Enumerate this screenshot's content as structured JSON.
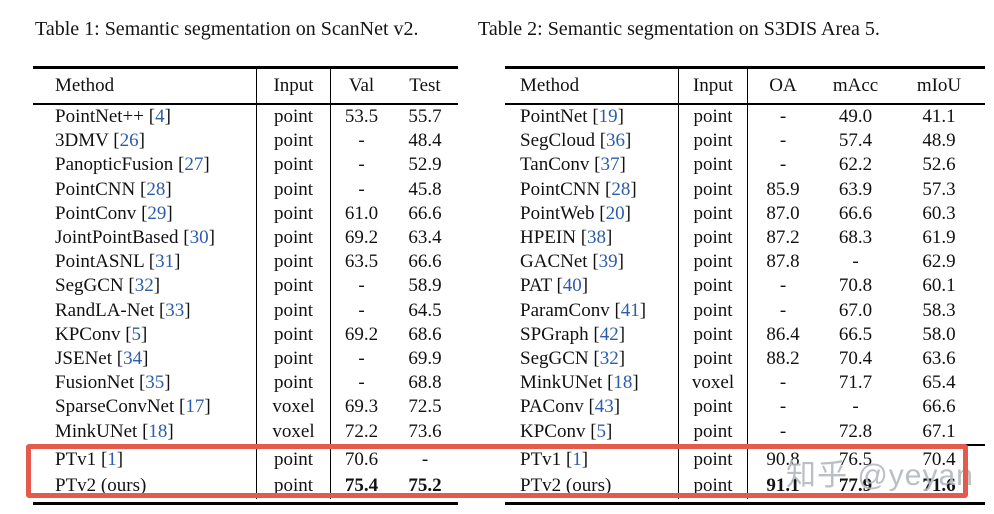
{
  "watermark": "知乎 @yeyan",
  "colors": {
    "citation_blue": "#2b5cad",
    "highlight_red": "#e65a4d",
    "watermark_gray": "#b1b6bd",
    "text": "#111111"
  },
  "highlight_note": "red-annotation-box-around-PTv1-PTv2-rows",
  "tables": [
    {
      "title": "Table 1: Semantic segmentation on ScanNet v2.",
      "columns": [
        "Method",
        "Input",
        "Val",
        "Test"
      ],
      "rows": [
        {
          "name": "PointNet++",
          "ref": "4",
          "input": "point",
          "values": [
            "53.5",
            "55.7"
          ]
        },
        {
          "name": "3DMV",
          "ref": "26",
          "input": "point",
          "values": [
            "-",
            "48.4"
          ]
        },
        {
          "name": "PanopticFusion",
          "ref": "27",
          "input": "point",
          "values": [
            "-",
            "52.9"
          ]
        },
        {
          "name": "PointCNN",
          "ref": "28",
          "input": "point",
          "values": [
            "-",
            "45.8"
          ]
        },
        {
          "name": "PointConv",
          "ref": "29",
          "input": "point",
          "values": [
            "61.0",
            "66.6"
          ]
        },
        {
          "name": "JointPointBased",
          "ref": "30",
          "input": "point",
          "values": [
            "69.2",
            "63.4"
          ]
        },
        {
          "name": "PointASNL",
          "ref": "31",
          "input": "point",
          "values": [
            "63.5",
            "66.6"
          ]
        },
        {
          "name": "SegGCN",
          "ref": "32",
          "input": "point",
          "values": [
            "-",
            "58.9"
          ]
        },
        {
          "name": "RandLA-Net",
          "ref": "33",
          "input": "point",
          "values": [
            "-",
            "64.5"
          ]
        },
        {
          "name": "KPConv",
          "ref": "5",
          "input": "point",
          "values": [
            "69.2",
            "68.6"
          ]
        },
        {
          "name": "JSENet",
          "ref": "34",
          "input": "point",
          "values": [
            "-",
            "69.9"
          ]
        },
        {
          "name": "FusionNet",
          "ref": "35",
          "input": "point",
          "values": [
            "-",
            "68.8"
          ]
        },
        {
          "name": "SparseConvNet",
          "ref": "17",
          "input": "voxel",
          "values": [
            "69.3",
            "72.5"
          ]
        },
        {
          "name": "MinkUNet",
          "ref": "18",
          "input": "voxel",
          "values": [
            "72.2",
            "73.6"
          ]
        }
      ],
      "highlight_rows": [
        {
          "name": "PTv1",
          "ref": "1",
          "input": "point",
          "values": [
            "70.6",
            "-"
          ],
          "bold_values": false
        },
        {
          "name": "PTv2 (ours)",
          "ref": null,
          "input": "point",
          "values": [
            "75.4",
            "75.2"
          ],
          "bold_values": true
        }
      ]
    },
    {
      "title": "Table 2: Semantic segmentation on S3DIS Area 5.",
      "columns": [
        "Method",
        "Input",
        "OA",
        "mAcc",
        "mIoU"
      ],
      "rows": [
        {
          "name": "PointNet",
          "ref": "19",
          "input": "point",
          "values": [
            "-",
            "49.0",
            "41.1"
          ]
        },
        {
          "name": "SegCloud",
          "ref": "36",
          "input": "point",
          "values": [
            "-",
            "57.4",
            "48.9"
          ]
        },
        {
          "name": "TanConv",
          "ref": "37",
          "input": "point",
          "values": [
            "-",
            "62.2",
            "52.6"
          ]
        },
        {
          "name": "PointCNN",
          "ref": "28",
          "input": "point",
          "values": [
            "85.9",
            "63.9",
            "57.3"
          ]
        },
        {
          "name": "PointWeb",
          "ref": "20",
          "input": "point",
          "values": [
            "87.0",
            "66.6",
            "60.3"
          ]
        },
        {
          "name": "HPEIN",
          "ref": "38",
          "input": "point",
          "values": [
            "87.2",
            "68.3",
            "61.9"
          ]
        },
        {
          "name": "GACNet",
          "ref": "39",
          "input": "point",
          "values": [
            "87.8",
            "-",
            "62.9"
          ]
        },
        {
          "name": "PAT",
          "ref": "40",
          "input": "point",
          "values": [
            "-",
            "70.8",
            "60.1"
          ]
        },
        {
          "name": "ParamConv",
          "ref": "41",
          "input": "point",
          "values": [
            "-",
            "67.0",
            "58.3"
          ]
        },
        {
          "name": "SPGraph",
          "ref": "42",
          "input": "point",
          "values": [
            "86.4",
            "66.5",
            "58.0"
          ]
        },
        {
          "name": "SegGCN",
          "ref": "32",
          "input": "point",
          "values": [
            "88.2",
            "70.4",
            "63.6"
          ]
        },
        {
          "name": "MinkUNet",
          "ref": "18",
          "input": "voxel",
          "values": [
            "-",
            "71.7",
            "65.4"
          ]
        },
        {
          "name": "PAConv",
          "ref": "43",
          "input": "point",
          "values": [
            "-",
            "-",
            "66.6"
          ]
        },
        {
          "name": "KPConv",
          "ref": "5",
          "input": "point",
          "values": [
            "-",
            "72.8",
            "67.1"
          ]
        }
      ],
      "highlight_rows": [
        {
          "name": "PTv1",
          "ref": "1",
          "input": "point",
          "values": [
            "90.8",
            "76.5",
            "70.4"
          ],
          "bold_values": false
        },
        {
          "name": "PTv2 (ours)",
          "ref": null,
          "input": "point",
          "values": [
            "91.1",
            "77.9",
            "71.6"
          ],
          "bold_values": true
        }
      ]
    }
  ]
}
